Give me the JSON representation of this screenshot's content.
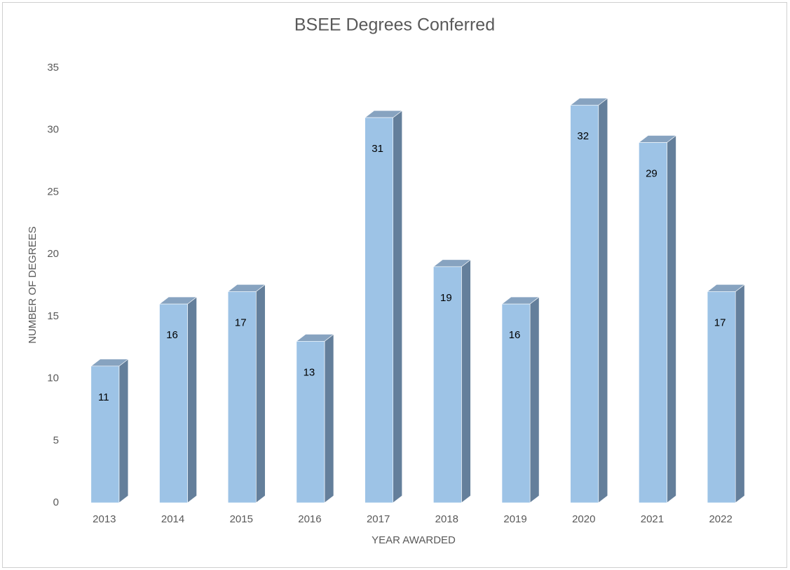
{
  "chart_data": {
    "type": "bar3d",
    "title": "BSEE Degrees Conferred",
    "x_label": "YEAR AWARDED",
    "y_label": "NUMBER OF DEGREES",
    "categories": [
      "2013",
      "2014",
      "2015",
      "2016",
      "2017",
      "2018",
      "2019",
      "2020",
      "2021",
      "2022"
    ],
    "values": [
      11,
      16,
      17,
      13,
      31,
      19,
      16,
      32,
      29,
      17
    ],
    "color": "#9dc3e6",
    "ylim": [
      0,
      35
    ],
    "yticks": [
      0,
      5,
      10,
      15,
      20,
      25,
      30,
      35
    ],
    "grid": false
  }
}
